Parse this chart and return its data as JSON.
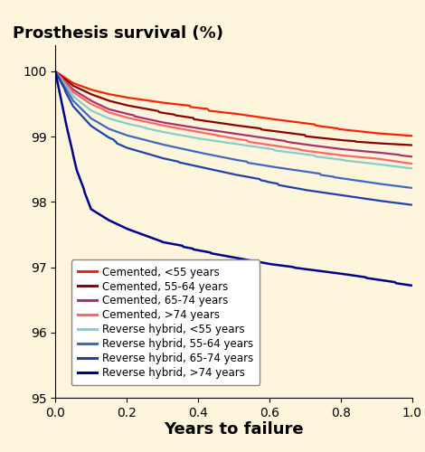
{
  "title": "Prosthesis survival (%)",
  "xlabel": "Years to failure",
  "xlim": [
    0,
    1.0
  ],
  "ylim": [
    95,
    100.4
  ],
  "yticks": [
    95,
    96,
    97,
    98,
    99,
    100
  ],
  "xticks": [
    0,
    0.2,
    0.4,
    0.6,
    0.8,
    1.0
  ],
  "background_color": "#fdf5dc",
  "title_fontsize": 13,
  "xlabel_fontsize": 13,
  "tick_fontsize": 10,
  "legend_fontsize": 8.5,
  "series": [
    {
      "label": "Cemented, <55 years",
      "color": "#ff2200",
      "linewidth": 1.6,
      "x": [
        0,
        0.05,
        0.1,
        0.15,
        0.2,
        0.3,
        0.4,
        0.5,
        0.6,
        0.7,
        0.8,
        0.9,
        1.0
      ],
      "y": [
        100,
        99.82,
        99.72,
        99.65,
        99.6,
        99.52,
        99.46,
        99.4,
        99.32,
        99.25,
        99.18,
        99.12,
        99.08
      ]
    },
    {
      "label": "Cemented, 55-64 years",
      "color": "#8b0000",
      "linewidth": 1.6,
      "x": [
        0,
        0.05,
        0.1,
        0.15,
        0.2,
        0.3,
        0.4,
        0.5,
        0.6,
        0.7,
        0.8,
        0.9,
        1.0
      ],
      "y": [
        100,
        99.78,
        99.65,
        99.55,
        99.48,
        99.38,
        99.3,
        99.22,
        99.15,
        99.08,
        99.02,
        98.98,
        98.95
      ]
    },
    {
      "label": "Cemented, 65-74 years",
      "color": "#aa3070",
      "linewidth": 1.6,
      "x": [
        0,
        0.05,
        0.1,
        0.15,
        0.2,
        0.3,
        0.4,
        0.5,
        0.6,
        0.7,
        0.8,
        0.9,
        1.0
      ],
      "y": [
        100,
        99.72,
        99.55,
        99.42,
        99.35,
        99.23,
        99.14,
        99.06,
        98.98,
        98.9,
        98.83,
        98.78,
        98.72
      ]
    },
    {
      "label": "Cemented, >74 years",
      "color": "#ff6666",
      "linewidth": 1.6,
      "x": [
        0,
        0.05,
        0.1,
        0.15,
        0.2,
        0.3,
        0.4,
        0.5,
        0.6,
        0.7,
        0.8,
        0.9,
        1.0
      ],
      "y": [
        100,
        99.68,
        99.5,
        99.38,
        99.3,
        99.18,
        99.08,
        98.98,
        98.9,
        98.82,
        98.75,
        98.7,
        98.62
      ]
    },
    {
      "label": "Reverse hybrid, <55 years",
      "color": "#88cccc",
      "linewidth": 1.6,
      "x": [
        0,
        0.05,
        0.1,
        0.15,
        0.2,
        0.3,
        0.4,
        0.5,
        0.6,
        0.7,
        0.8,
        0.9,
        1.0
      ],
      "y": [
        100,
        99.62,
        99.4,
        99.28,
        99.2,
        99.08,
        98.98,
        98.9,
        98.82,
        98.75,
        98.68,
        98.62,
        98.55
      ]
    },
    {
      "label": "Reverse hybrid, 55-64 years",
      "color": "#4169bb",
      "linewidth": 1.6,
      "x": [
        0,
        0.05,
        0.1,
        0.15,
        0.2,
        0.3,
        0.4,
        0.5,
        0.6,
        0.7,
        0.8,
        0.9,
        1.0
      ],
      "y": [
        100,
        99.55,
        99.28,
        99.12,
        99.02,
        98.88,
        98.76,
        98.65,
        98.56,
        98.48,
        98.4,
        98.32,
        98.25
      ]
    },
    {
      "label": "Reverse hybrid, 65-74 years",
      "color": "#2040aa",
      "linewidth": 1.6,
      "x": [
        0,
        0.05,
        0.1,
        0.15,
        0.2,
        0.3,
        0.4,
        0.5,
        0.6,
        0.7,
        0.8,
        0.9,
        1.0
      ],
      "y": [
        100,
        99.48,
        99.18,
        99.0,
        98.88,
        98.72,
        98.6,
        98.48,
        98.38,
        98.28,
        98.2,
        98.12,
        98.05
      ]
    },
    {
      "label": "Reverse hybrid, >74 years",
      "color": "#00008b",
      "linewidth": 1.8,
      "x": [
        0,
        0.03,
        0.06,
        0.1,
        0.15,
        0.2,
        0.25,
        0.3,
        0.4,
        0.5,
        0.6,
        0.7,
        0.8,
        0.9,
        1.0
      ],
      "y": [
        100,
        99.2,
        98.5,
        97.92,
        97.75,
        97.62,
        97.52,
        97.42,
        97.32,
        97.22,
        97.12,
        97.05,
        96.98,
        96.9,
        96.82
      ]
    }
  ]
}
